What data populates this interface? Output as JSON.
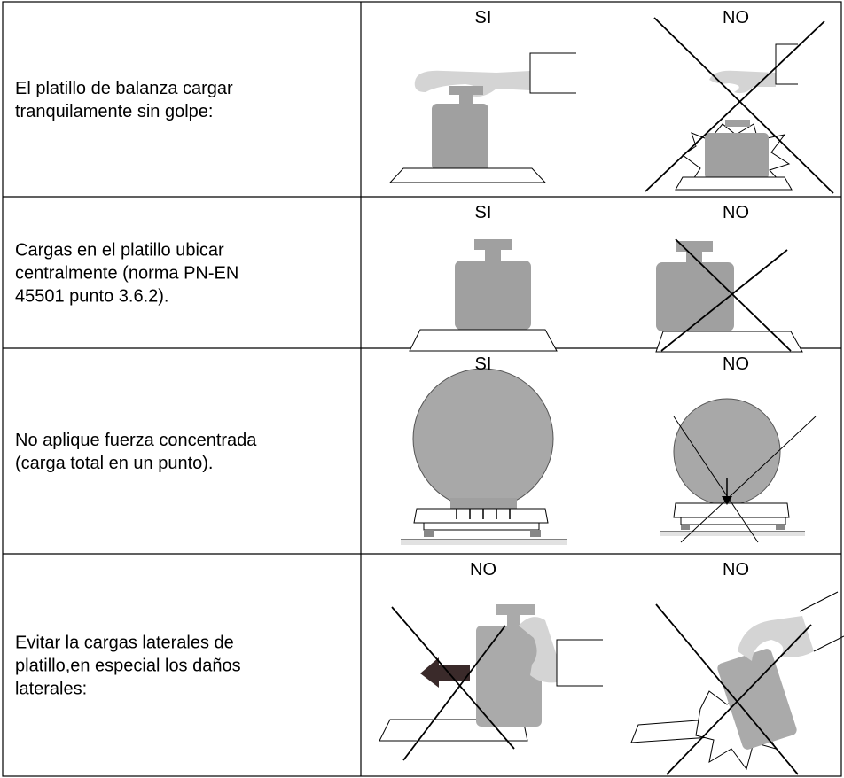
{
  "table": {
    "rows": [
      {
        "text_lines": [
          "El platillo de balanza cargar",
          "tranquilamente sin golpe:"
        ],
        "images": [
          {
            "label": "SI"
          },
          {
            "label": "NO"
          }
        ]
      },
      {
        "text_lines": [
          "Cargas en el platillo ubicar",
          "centralmente (norma PN-EN",
          "45501 punto 3.6.2)."
        ],
        "images": [
          {
            "label": "SI"
          },
          {
            "label": "NO"
          }
        ]
      },
      {
        "text_lines": [
          "No aplique fuerza concentrada",
          "(carga total en un punto)."
        ],
        "images": [
          {
            "label": "SI"
          },
          {
            "label": "NO"
          }
        ]
      },
      {
        "text_lines": [
          "Evitar la cargas laterales de",
          "platillo,en especial los daños",
          "laterales:"
        ],
        "images": [
          {
            "label": "NO"
          },
          {
            "label": "NO"
          }
        ]
      }
    ]
  }
}
